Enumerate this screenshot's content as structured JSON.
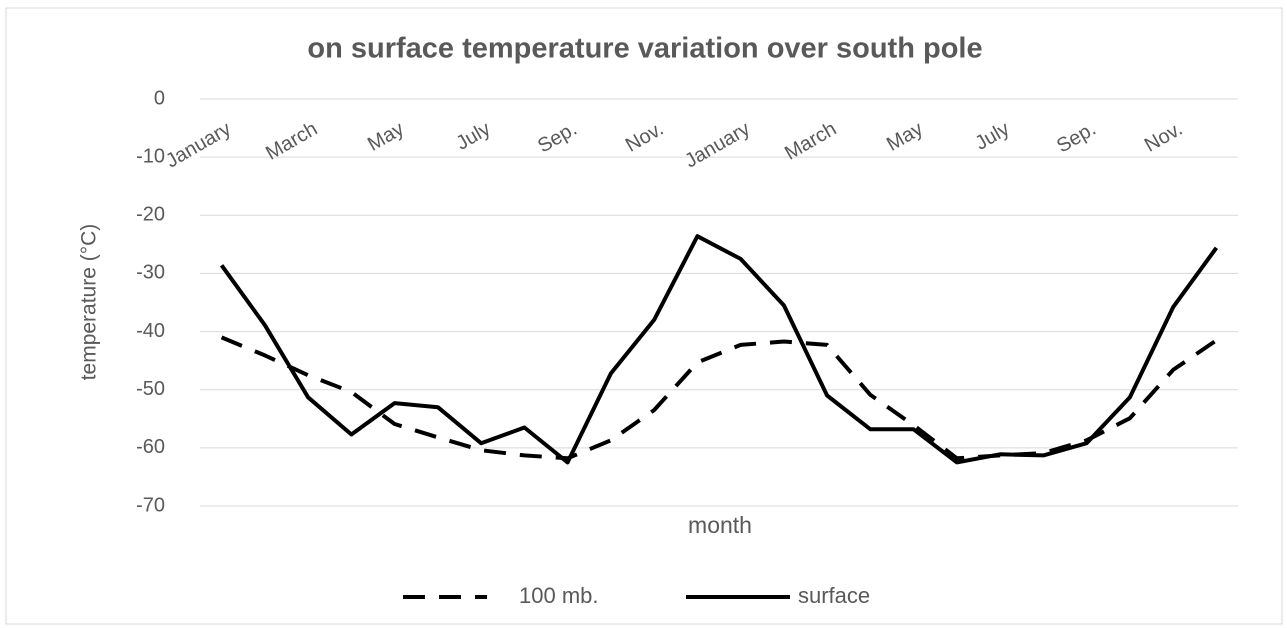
{
  "chart_data": {
    "type": "line",
    "title": "on surface temperature variation over south pole",
    "x_label": "month",
    "y_label": "temperature (°C)",
    "categories": [
      "January",
      null,
      "March",
      null,
      "May",
      null,
      "July",
      null,
      "Sep.",
      null,
      "Nov.",
      null,
      "January",
      null,
      "March",
      null,
      "May",
      null,
      "July",
      null,
      "Sep.",
      null,
      "Nov.",
      null
    ],
    "series": [
      {
        "name": "100 mb.",
        "color": "#000000",
        "dashed": true,
        "values": [
          -41.0,
          -44.1,
          -47.5,
          -50.4,
          -55.9,
          -58.2,
          -60.4,
          -61.3,
          -61.8,
          -58.7,
          -53.5,
          -45.3,
          -42.3,
          -41.7,
          -42.3,
          -50.9,
          -56.1,
          -61.8,
          -61.3,
          -60.9,
          -58.7,
          -54.9,
          -46.6,
          -41.5
        ]
      },
      {
        "name": "surface",
        "color": "#000000",
        "dashed": false,
        "values": [
          -28.6,
          -38.9,
          -51.3,
          -57.7,
          -52.3,
          -53.0,
          -59.2,
          -56.5,
          -62.5,
          -47.2,
          -38.0,
          -23.6,
          -27.5,
          -35.5,
          -51.0,
          -56.8,
          -56.8,
          -62.5,
          -61.1,
          -61.3,
          -59.2,
          -51.3,
          -35.8,
          -25.6
        ]
      }
    ],
    "ylim": [
      -70,
      0
    ],
    "yticks": [
      0,
      -10,
      -20,
      -30,
      -40,
      -50,
      -60,
      -70
    ],
    "grid": true,
    "legend": "bottom"
  }
}
